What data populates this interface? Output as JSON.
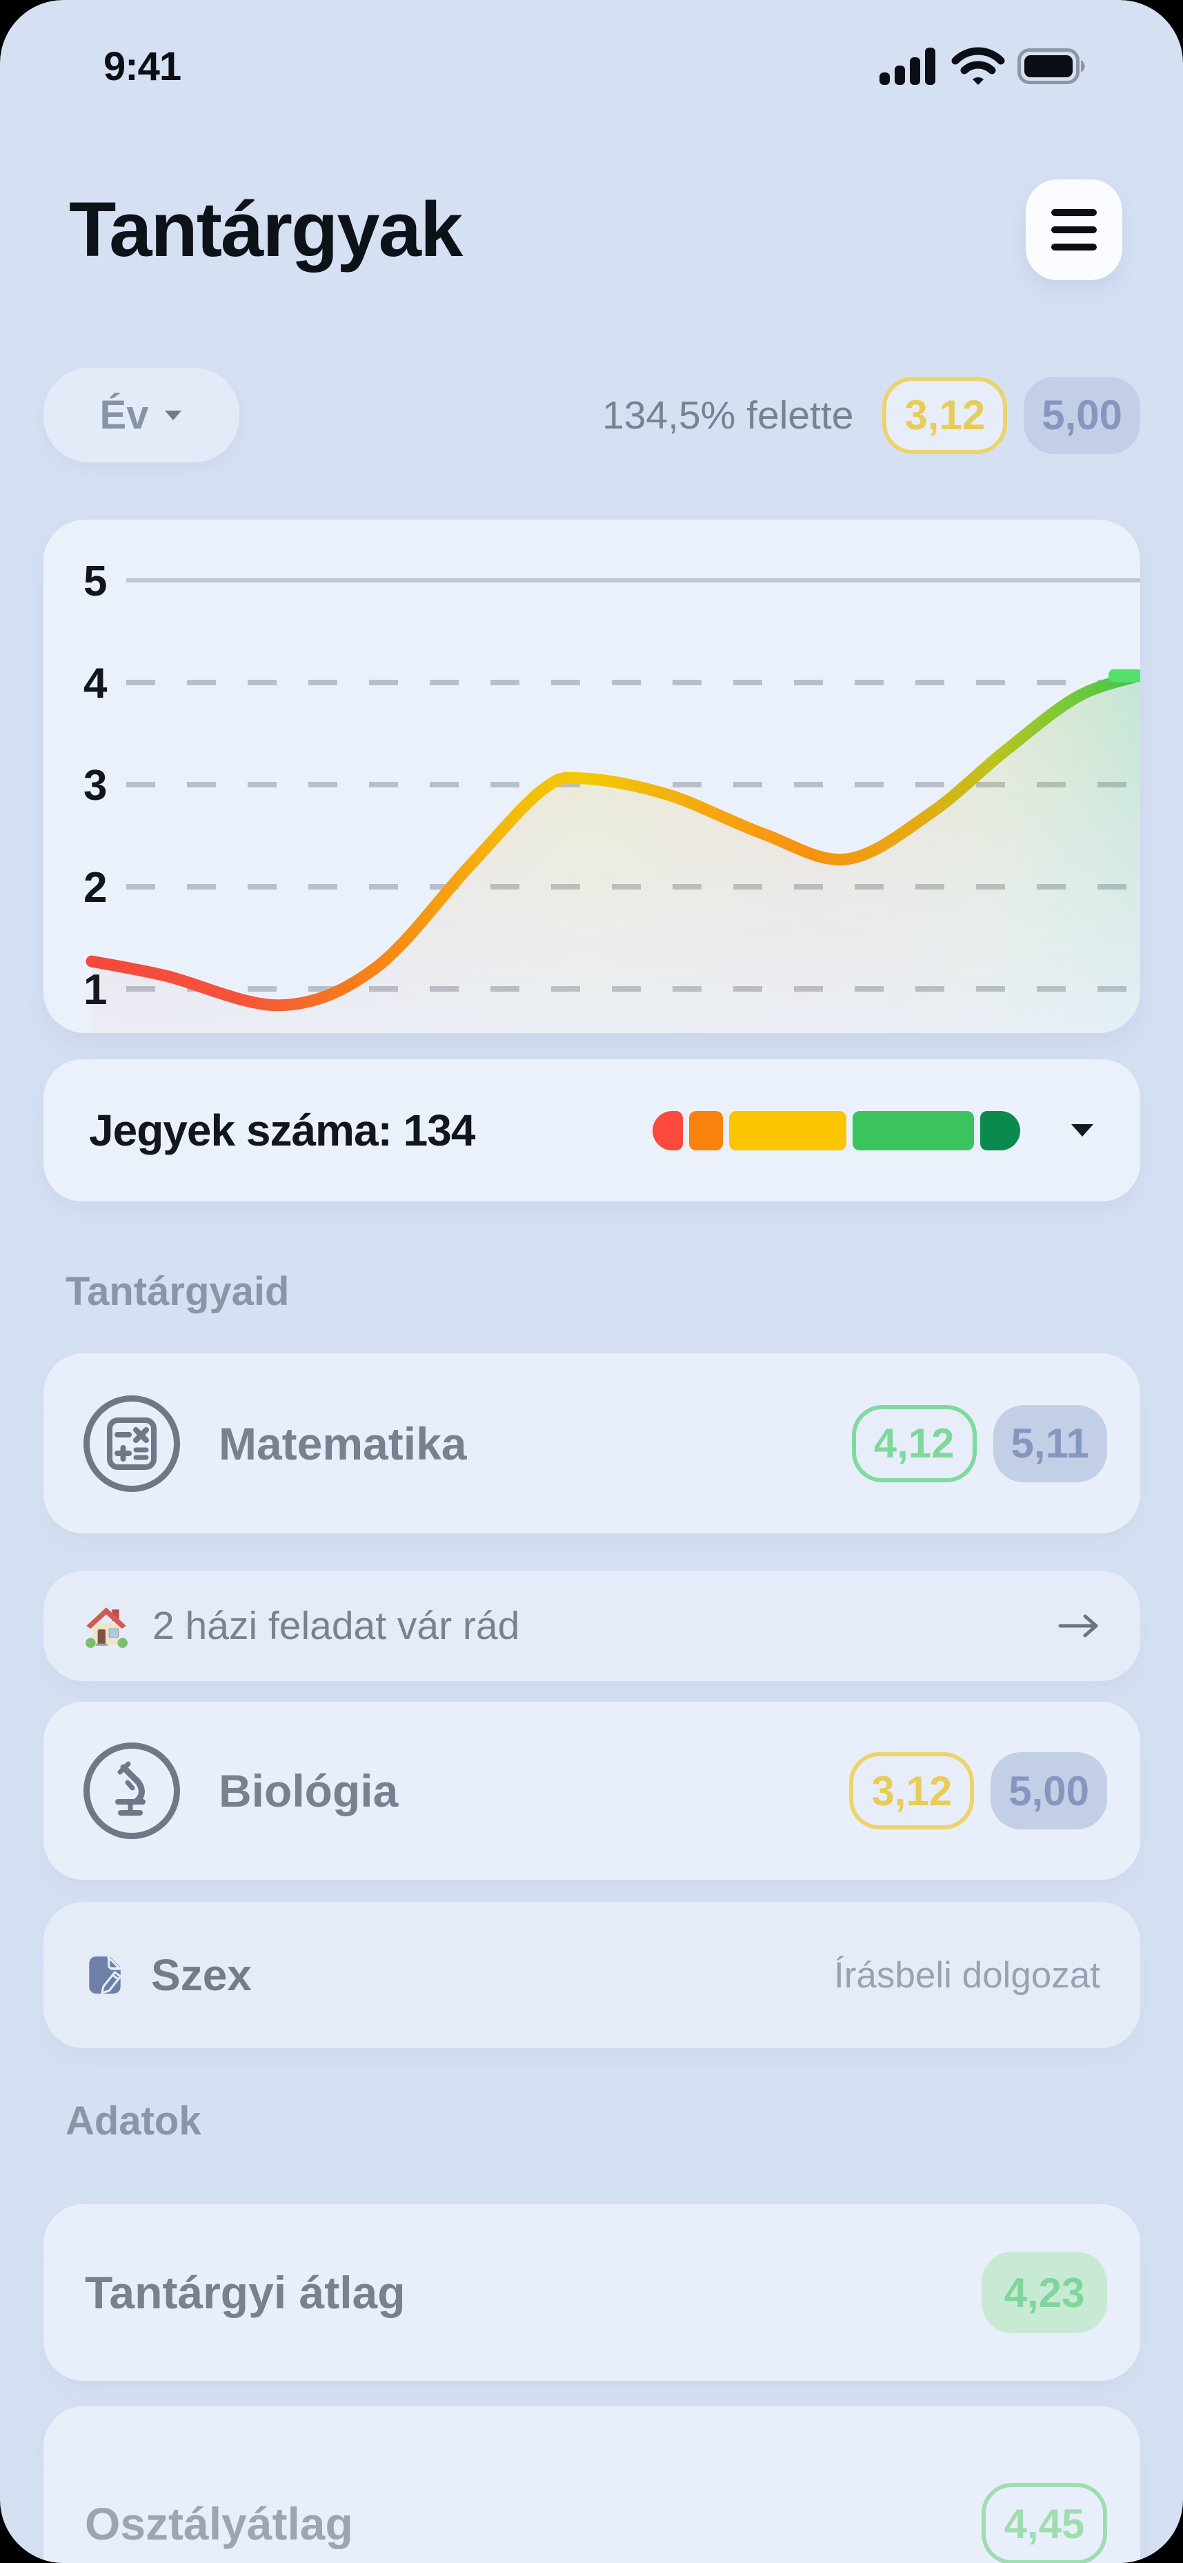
{
  "status_bar": {
    "time": "9:41",
    "icons": [
      "cellular-signal-icon",
      "wifi-icon",
      "battery-icon"
    ]
  },
  "header": {
    "title": "Tantárgyak",
    "menu_icon": "hamburger-menu-icon"
  },
  "controls": {
    "period_selector": "Év",
    "period_chevron": "chevron-down-icon",
    "above_text": "134,5% felette",
    "average_badge": "3,12",
    "class_average_badge": "5,00"
  },
  "chart_data": {
    "type": "line",
    "title": "",
    "xlabel": "",
    "ylabel": "",
    "yticks": [
      1,
      2,
      3,
      4,
      5
    ],
    "ylim": [
      0.5,
      5.3
    ],
    "grid": "horizontal; solid line at 5, dashed at 1-4",
    "legend_position": "none",
    "series": [
      {
        "name": "grade-trend",
        "stroke": "red-orange-yellow-green gradient (low grade = red, high = green)",
        "points": [
          [
            0.0,
            1.27
          ],
          [
            0.07,
            1.13
          ],
          [
            0.18,
            0.84
          ],
          [
            0.27,
            1.2
          ],
          [
            0.36,
            2.2
          ],
          [
            0.43,
            2.95
          ],
          [
            0.47,
            3.06
          ],
          [
            0.55,
            2.9
          ],
          [
            0.64,
            2.52
          ],
          [
            0.72,
            2.27
          ],
          [
            0.8,
            2.72
          ],
          [
            0.87,
            3.32
          ],
          [
            0.94,
            3.86
          ],
          [
            1.0,
            4.07
          ]
        ],
        "end_marker": "small green rounded square at right edge near grade 4"
      }
    ]
  },
  "grades_summary": {
    "label": "Jegyek száma: 134",
    "chevron": "chevron-down-icon",
    "segments": [
      {
        "name": "grade-1-red",
        "color": "#FB4A3C",
        "px": 46
      },
      {
        "name": "grade-2-orange",
        "color": "#F8820B",
        "px": 50
      },
      {
        "name": "grade-3-yellow",
        "color": "#FCC502",
        "px": 176
      },
      {
        "name": "grade-4-green",
        "color": "#3BC45E",
        "px": 182
      },
      {
        "name": "grade-5-dark-green",
        "color": "#0A8A4D",
        "px": 60
      }
    ]
  },
  "sections": {
    "subjects_header": "Tantárgyaid",
    "data_header": "Adatok"
  },
  "subjects": [
    {
      "name": "Matematika",
      "icon": "calculator-icon",
      "average": "4,12",
      "class_average": "5,11"
    },
    {
      "name": "Biológia",
      "icon": "microscope-icon",
      "average": "3,12",
      "class_average": "5,00"
    }
  ],
  "homework_row": {
    "icon": "house-icon",
    "text": "2 házi feladat vár rád",
    "arrow": "arrow-right-icon"
  },
  "exam_row": {
    "icon": "memo-pencil-icon",
    "name": "Szex",
    "detail": "Írásbeli dolgozat"
  },
  "stats": [
    {
      "label": "Tantárgyi átlag",
      "value": "4,23",
      "style": "filled-green"
    },
    {
      "label": "Osztályátlag",
      "value": "4,45",
      "style": "outline-green"
    }
  ],
  "colors": {
    "screen_bg": "#D6E0F3",
    "card_bg": "#EBF1FB",
    "thin_row_bg": "#E5ECF8",
    "dark_text": "#12161C",
    "gray_text": "#78818F",
    "light_gray_text": "#99A2B2",
    "yellow_accent": "#ECD36B",
    "green_accent": "#7ED89B",
    "blue_gray_pill": "#C3CFE7",
    "bar_red": "#FB4A3C",
    "bar_orange": "#F8820B",
    "bar_yellow": "#FCC502",
    "bar_green": "#3BC45E",
    "bar_dark_green": "#0A8A4D"
  }
}
